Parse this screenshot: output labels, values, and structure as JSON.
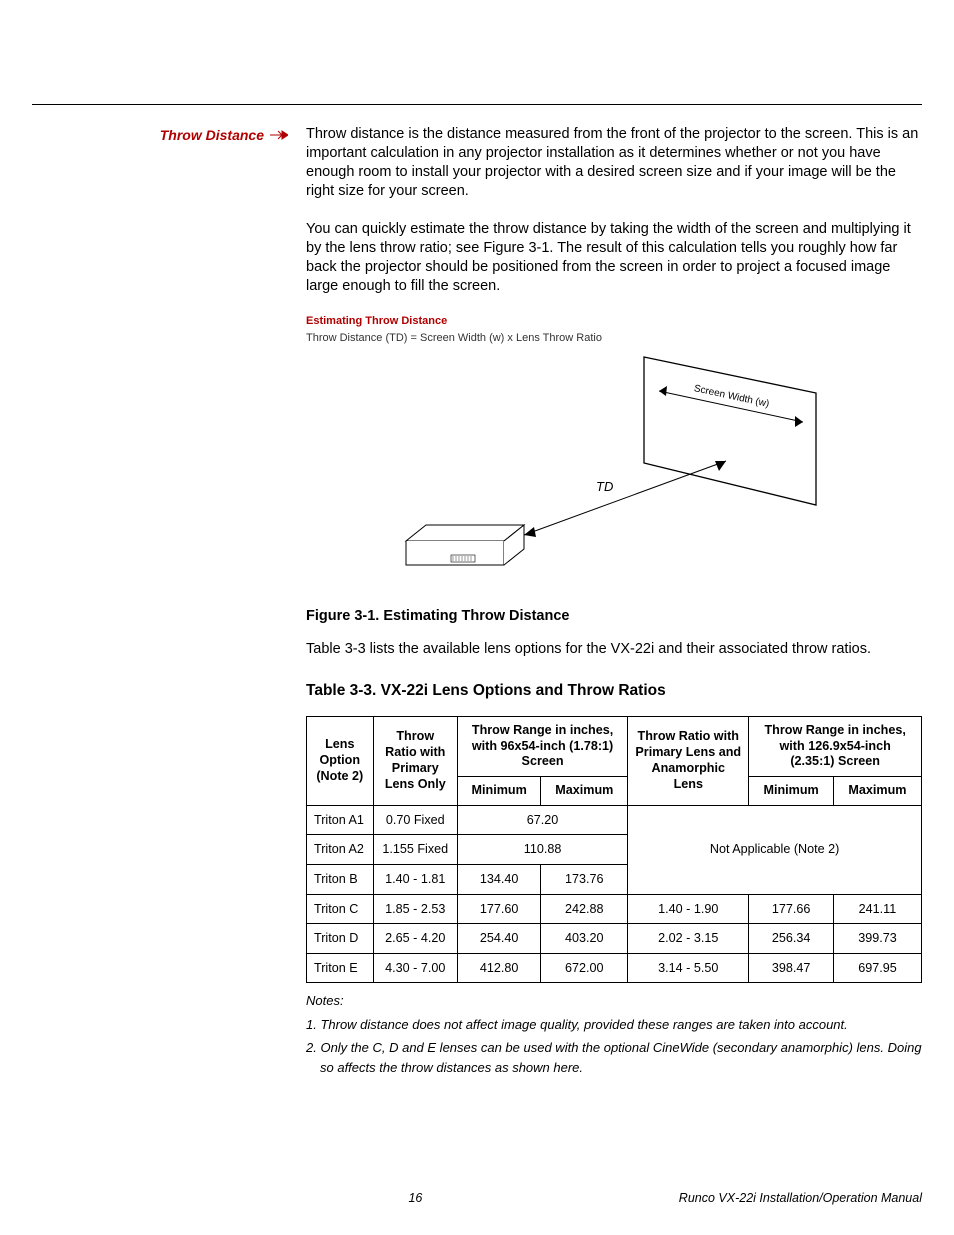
{
  "sideLabel": "Throw Distance",
  "para1": "Throw distance is the distance measured from the front of the projector to the screen. This is an important calculation in any projector installation as it determines whether or not you have enough room to install your projector with a desired screen size and if your image will be the right size for your screen.",
  "para2": "You can quickly estimate the throw distance by taking the width of the screen and multiplying it by the lens throw ratio; see Figure 3-1. The result of this calculation tells you roughly how far back the projector should be positioned from the screen in order to project a focused image large enough to fill the screen.",
  "figure": {
    "heading": "Estimating Throw Distance",
    "formula": "Throw Distance (TD)  =  Screen Width (w)  x  Lens Throw Ratio",
    "screenWidthLabel": "Screen Width (w)",
    "tdLabel": "TD",
    "caption": "Figure 3-1. Estimating Throw Distance",
    "colors": {
      "heading": "#b00000",
      "line": "#000000"
    }
  },
  "para3": "Table 3-3 lists the available lens options for the VX-22i and their associated throw ratios.",
  "tableCaption": "Table 3-3. VX-22i Lens Options and Throw Ratios",
  "table": {
    "headers": {
      "lensOption": "Lens Option (Note 2)",
      "ratioPrimary": "Throw Ratio with Primary Lens Only",
      "range96": "Throw Range in inches, with 96x54-inch (1.78:1) Screen",
      "ratioAnamorphic": "Throw Ratio with Primary Lens and Anamorphic Lens",
      "range126": "Throw Range in inches, with 126.9x54-inch (2.35:1) Screen",
      "min": "Minimum",
      "max": "Maximum"
    },
    "naText": "Not Applicable (Note 2)",
    "rows": [
      {
        "name": "Triton A1",
        "ratioP": "0.70 Fixed",
        "min96": "67.20",
        "max96": "",
        "single96": true,
        "ratioA": "",
        "min126": "",
        "max126": ""
      },
      {
        "name": "Triton A2",
        "ratioP": "1.155 Fixed",
        "min96": "110.88",
        "max96": "",
        "single96": true,
        "ratioA": "",
        "min126": "",
        "max126": ""
      },
      {
        "name": "Triton B",
        "ratioP": "1.40 - 1.81",
        "min96": "134.40",
        "max96": "173.76",
        "single96": false,
        "ratioA": "",
        "min126": "",
        "max126": ""
      },
      {
        "name": "Triton C",
        "ratioP": "1.85 - 2.53",
        "min96": "177.60",
        "max96": "242.88",
        "single96": false,
        "ratioA": "1.40 - 1.90",
        "min126": "177.66",
        "max126": "241.11"
      },
      {
        "name": "Triton D",
        "ratioP": "2.65 - 4.20",
        "min96": "254.40",
        "max96": "403.20",
        "single96": false,
        "ratioA": "2.02 - 3.15",
        "min126": "256.34",
        "max126": "399.73"
      },
      {
        "name": "Triton E",
        "ratioP": "4.30 - 7.00",
        "min96": "412.80",
        "max96": "672.00",
        "single96": false,
        "ratioA": "3.14 - 5.50",
        "min126": "398.47",
        "max126": "697.95"
      }
    ]
  },
  "notesHeading": "Notes:",
  "note1": "1. Throw distance does not affect image quality, provided these ranges are taken into account.",
  "note2": "2. Only the C, D and E lenses can be used with the optional CineWide (secondary anamorphic) lens. Doing so affects the throw distances as shown here.",
  "footerPage": "16",
  "footerDoc": "Runco VX-22i Installation/Operation Manual"
}
